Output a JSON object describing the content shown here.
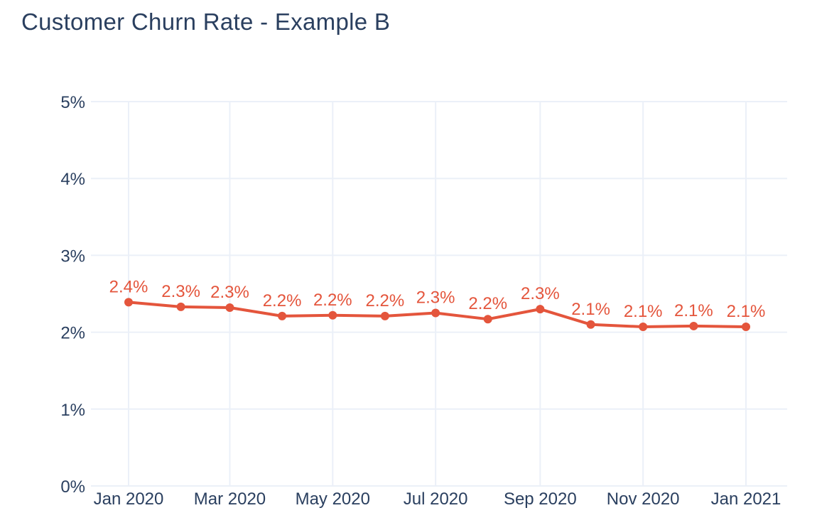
{
  "chart_data": {
    "type": "line",
    "title": "Customer Churn Rate - Example B",
    "xlabel": "",
    "ylabel": "",
    "x": [
      "2020-01-01",
      "2020-02-01",
      "2020-03-01",
      "2020-04-01",
      "2020-05-01",
      "2020-06-01",
      "2020-07-01",
      "2020-08-01",
      "2020-09-01",
      "2020-10-01",
      "2020-11-01",
      "2020-12-01",
      "2021-01-01"
    ],
    "series": [
      {
        "values": [
          2.39,
          2.33,
          2.32,
          2.21,
          2.22,
          2.21,
          2.25,
          2.17,
          2.3,
          2.1,
          2.07,
          2.08,
          2.07
        ],
        "labels": [
          "2.4%",
          "2.3%",
          "2.3%",
          "2.2%",
          "2.2%",
          "2.2%",
          "2.3%",
          "2.2%",
          "2.3%",
          "2.1%",
          "2.1%",
          "2.1%",
          "2.1%"
        ],
        "color": "#e4553c"
      }
    ],
    "ylim": [
      0,
      5
    ],
    "xlim": [
      "2020-01-01",
      "2021-01-01"
    ],
    "y_ticks": [
      {
        "value": 0,
        "label": "0%"
      },
      {
        "value": 1,
        "label": "1%"
      },
      {
        "value": 2,
        "label": "2%"
      },
      {
        "value": 3,
        "label": "3%"
      },
      {
        "value": 4,
        "label": "4%"
      },
      {
        "value": 5,
        "label": "5%"
      }
    ],
    "x_ticks": [
      {
        "value": "2020-01-01",
        "label": "Jan 2020"
      },
      {
        "value": "2020-03-01",
        "label": "Mar 2020"
      },
      {
        "value": "2020-05-01",
        "label": "May 2020"
      },
      {
        "value": "2020-07-01",
        "label": "Jul 2020"
      },
      {
        "value": "2020-09-01",
        "label": "Sep 2020"
      },
      {
        "value": "2020-11-01",
        "label": "Nov 2020"
      },
      {
        "value": "2021-01-01",
        "label": "Jan 2021"
      }
    ],
    "grid": true,
    "colors": {
      "grid": "#ebf0f8",
      "text": "#2a3f5f"
    }
  }
}
